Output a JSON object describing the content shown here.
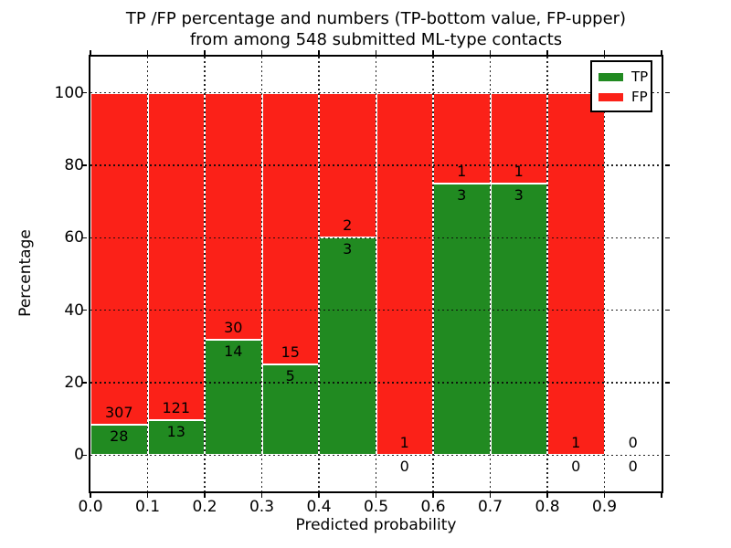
{
  "chart_data": {
    "type": "bar",
    "stacked": true,
    "title_lines": [
      "TP /FP percentage and numbers (TP-bottom value, FP-upper)",
      "from among 548 submitted ML-type contacts"
    ],
    "xlabel": "Predicted probability",
    "ylabel": "Percentage",
    "x_tick_labels": [
      "0.0",
      "0.1",
      "0.2",
      "0.3",
      "0.4",
      "0.5",
      "0.6",
      "0.7",
      "0.8",
      "0.9"
    ],
    "y_tick_values": [
      0,
      20,
      40,
      60,
      80,
      100
    ],
    "xlim": [
      0.0,
      1.0
    ],
    "ylim": [
      -10,
      110
    ],
    "grid": "dotted",
    "colors": {
      "tp": "#218a21",
      "fp": "#fb2118"
    },
    "legend": {
      "position": "upper right",
      "entries": [
        {
          "label": "TP",
          "color": "#218a21"
        },
        {
          "label": "FP",
          "color": "#fb2118"
        }
      ]
    },
    "bins": [
      {
        "x_start": 0.0,
        "x_end": 0.1,
        "tp": 28,
        "fp": 307,
        "tp_pct": 8.4,
        "fp_pct": 91.6
      },
      {
        "x_start": 0.1,
        "x_end": 0.2,
        "tp": 13,
        "fp": 121,
        "tp_pct": 9.7,
        "fp_pct": 90.3
      },
      {
        "x_start": 0.2,
        "x_end": 0.3,
        "tp": 14,
        "fp": 30,
        "tp_pct": 31.8,
        "fp_pct": 68.2
      },
      {
        "x_start": 0.3,
        "x_end": 0.4,
        "tp": 5,
        "fp": 15,
        "tp_pct": 25.0,
        "fp_pct": 75.0
      },
      {
        "x_start": 0.4,
        "x_end": 0.5,
        "tp": 3,
        "fp": 2,
        "tp_pct": 60.0,
        "fp_pct": 40.0
      },
      {
        "x_start": 0.5,
        "x_end": 0.6,
        "tp": 0,
        "fp": 1,
        "tp_pct": 0.0,
        "fp_pct": 100.0
      },
      {
        "x_start": 0.6,
        "x_end": 0.7,
        "tp": 3,
        "fp": 1,
        "tp_pct": 75.0,
        "fp_pct": 25.0
      },
      {
        "x_start": 0.7,
        "x_end": 0.8,
        "tp": 3,
        "fp": 1,
        "tp_pct": 75.0,
        "fp_pct": 25.0
      },
      {
        "x_start": 0.8,
        "x_end": 0.9,
        "tp": 0,
        "fp": 1,
        "tp_pct": 0.0,
        "fp_pct": 100.0
      },
      {
        "x_start": 0.9,
        "x_end": 1.0,
        "tp": 0,
        "fp": 0,
        "tp_pct": null,
        "fp_pct": null
      }
    ]
  }
}
